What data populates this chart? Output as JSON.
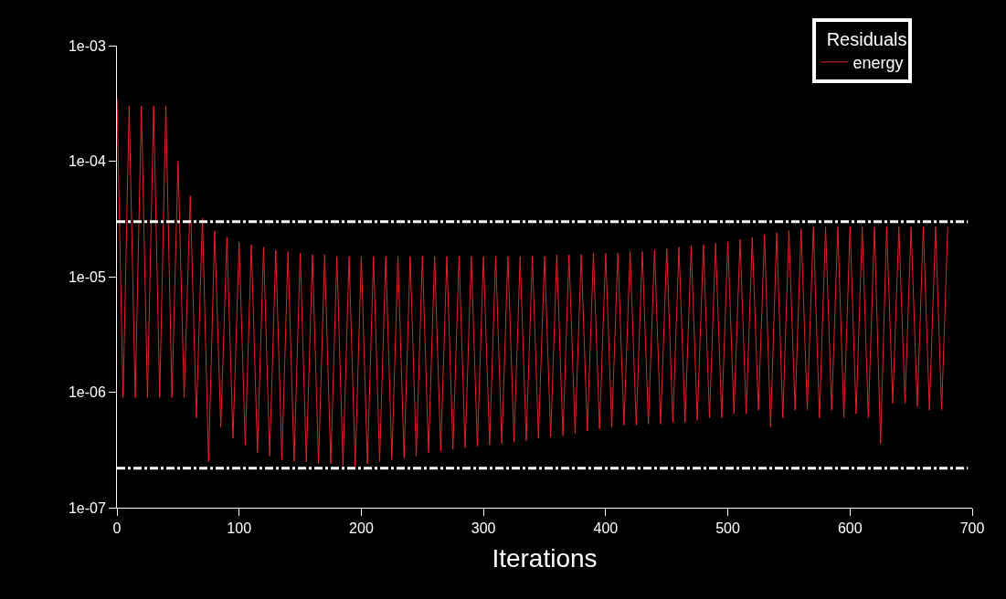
{
  "chart_data": {
    "type": "line",
    "xlabel": "Iterations",
    "legend_title": "Residuals",
    "legend": "top right",
    "log": "y",
    "grid": false,
    "marker": "none",
    "xlim": [
      0,
      700
    ],
    "xticks": [
      0,
      100,
      200,
      300,
      400,
      500,
      600,
      700
    ],
    "ylim": [
      1e-07,
      0.001
    ],
    "yticks": [
      {
        "value": 1e-07,
        "label": "1e-07"
      },
      {
        "value": 1e-06,
        "label": "1e-06"
      },
      {
        "value": 1e-05,
        "label": "1e-05"
      },
      {
        "value": 0.0001,
        "label": "1e-04"
      },
      {
        "value": 0.001,
        "label": "1e-03"
      }
    ],
    "ref_lines": [
      {
        "axis": "y",
        "value": 3e-05,
        "color": "#ffffff",
        "line_style": "dashdot"
      },
      {
        "axis": "y",
        "value": 2.2e-07,
        "color": "#ffffff",
        "line_style": "dashdot"
      }
    ],
    "x": [
      0,
      5,
      10,
      15,
      20,
      25,
      30,
      35,
      40,
      45,
      50,
      55,
      60,
      65,
      70,
      75,
      80,
      85,
      90,
      95,
      100,
      105,
      110,
      115,
      120,
      125,
      130,
      135,
      140,
      145,
      150,
      155,
      160,
      165,
      170,
      175,
      180,
      185,
      190,
      195,
      200,
      205,
      210,
      215,
      220,
      225,
      230,
      235,
      240,
      245,
      250,
      255,
      260,
      265,
      270,
      275,
      280,
      285,
      290,
      295,
      300,
      305,
      310,
      315,
      320,
      325,
      330,
      335,
      340,
      345,
      350,
      355,
      360,
      365,
      370,
      375,
      380,
      385,
      390,
      395,
      400,
      405,
      410,
      415,
      420,
      425,
      430,
      435,
      440,
      445,
      450,
      455,
      460,
      465,
      470,
      475,
      480,
      485,
      490,
      495,
      500,
      505,
      510,
      515,
      520,
      525,
      530,
      535,
      540,
      545,
      550,
      555,
      560,
      565,
      570,
      575,
      580,
      585,
      590,
      595,
      600,
      605,
      610,
      615,
      620,
      625,
      630,
      635,
      640,
      645,
      650,
      655,
      660,
      665,
      670,
      675,
      680
    ],
    "series": [
      {
        "name": "energy",
        "color": "#e8212a",
        "line_style": "solid",
        "values": [
          0.00035,
          9e-07,
          0.0003,
          9e-07,
          0.0003,
          9e-07,
          0.0003,
          9e-07,
          0.0003,
          9e-07,
          0.0001,
          9e-07,
          5e-05,
          6e-07,
          3.2e-05,
          2.5e-07,
          2.5e-05,
          5e-07,
          2.2e-05,
          4e-07,
          2e-05,
          3.5e-07,
          1.9e-05,
          3e-07,
          1.8e-05,
          2.8e-07,
          1.7e-05,
          2.6e-07,
          1.65e-05,
          2.5e-07,
          1.6e-05,
          2.5e-07,
          1.55e-05,
          2.4e-07,
          1.55e-05,
          2.4e-07,
          1.5e-05,
          2.3e-07,
          1.5e-05,
          2.3e-07,
          1.5e-05,
          2.4e-07,
          1.5e-05,
          2.5e-07,
          1.5e-05,
          2.6e-07,
          1.5e-05,
          2.7e-07,
          1.5e-05,
          2.8e-07,
          1.5e-05,
          3e-07,
          1.5e-05,
          3.1e-07,
          1.5e-05,
          3.2e-07,
          1.5e-05,
          3.3e-07,
          1.5e-05,
          3.4e-07,
          1.5e-05,
          3.5e-07,
          1.5e-05,
          3.6e-07,
          1.5e-05,
          3.7e-07,
          1.5e-05,
          3.8e-07,
          1.5e-05,
          4e-07,
          1.5e-05,
          4.1e-07,
          1.55e-05,
          4.2e-07,
          1.55e-05,
          4.4e-07,
          1.55e-05,
          4.6e-07,
          1.6e-05,
          4.8e-07,
          1.6e-05,
          5e-07,
          1.6e-05,
          5.2e-07,
          1.65e-05,
          5.2e-07,
          1.65e-05,
          5.3e-07,
          1.7e-05,
          5.3e-07,
          1.75e-05,
          5.5e-07,
          1.8e-05,
          5.5e-07,
          1.85e-05,
          5.7e-07,
          1.9e-05,
          6e-07,
          1.95e-05,
          6e-07,
          2e-05,
          6.5e-07,
          2.1e-05,
          6.5e-07,
          2.2e-05,
          7e-07,
          2.3e-05,
          5e-07,
          2.4e-05,
          6e-07,
          2.5e-05,
          7e-07,
          2.6e-05,
          7e-07,
          2.7e-05,
          6e-07,
          2.7e-05,
          7e-07,
          2.7e-05,
          6e-07,
          2.7e-05,
          6.5e-07,
          2.7e-05,
          6e-07,
          2.7e-05,
          3.6e-07,
          2.7e-05,
          8e-07,
          2.7e-05,
          8e-07,
          2.7e-05,
          7.5e-07,
          2.7e-05,
          7e-07,
          2.7e-05,
          7e-07,
          2.7e-05
        ]
      }
    ]
  }
}
